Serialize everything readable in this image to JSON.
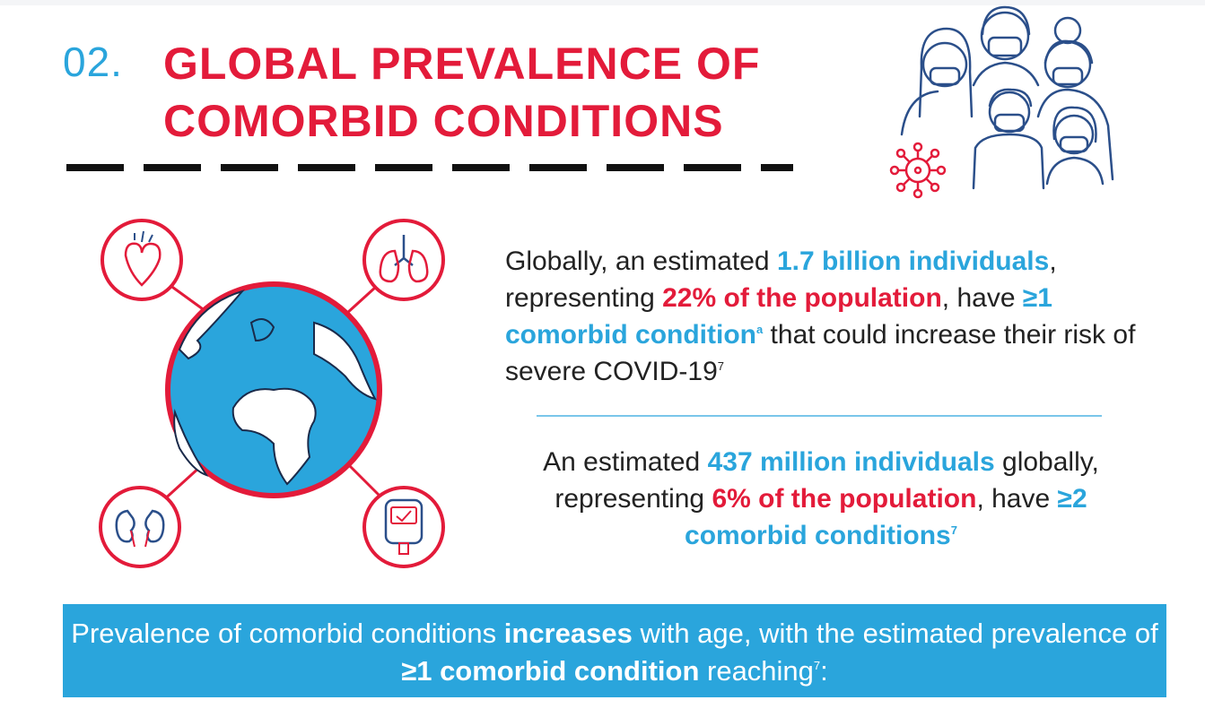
{
  "header": {
    "number": "02.",
    "title_line1": "GLOBAL PREVALENCE OF",
    "title_line2": "COMORBID CONDITIONS"
  },
  "icons": [
    "heart-icon",
    "lungs-icon",
    "kidneys-icon",
    "glucose-meter-icon",
    "globe-icon",
    "virus-icon",
    "masked-people-icon"
  ],
  "colors": {
    "red": "#e31b3a",
    "blue": "#2aa5dc",
    "text": "#222222",
    "banner": "#2aa5dc"
  },
  "para1": {
    "t1": "Globally, an estimated ",
    "b1": "1.7 billion individuals",
    "t2": ", representing ",
    "r1": "22% of the population",
    "t3": ", have ",
    "b2": "≥1 comorbid condition",
    "sup1": "a",
    "t4": " that could increase their risk of severe COVID-19",
    "sup2": "7"
  },
  "para2": {
    "t1": "An estimated ",
    "b1": "437 million individuals",
    "t2": " globally, representing ",
    "r1": "6% of the population",
    "t3": ", have ",
    "b2": "≥2 comorbid conditions",
    "sup1": "7"
  },
  "banner": {
    "t1": "Prevalence of comorbid conditions ",
    "b1": "increases",
    "t2": " with age, with the estimated prevalence of ",
    "b2": "≥1 comorbid condition",
    "t3": " reaching",
    "sup": "7",
    "t4": ":"
  }
}
